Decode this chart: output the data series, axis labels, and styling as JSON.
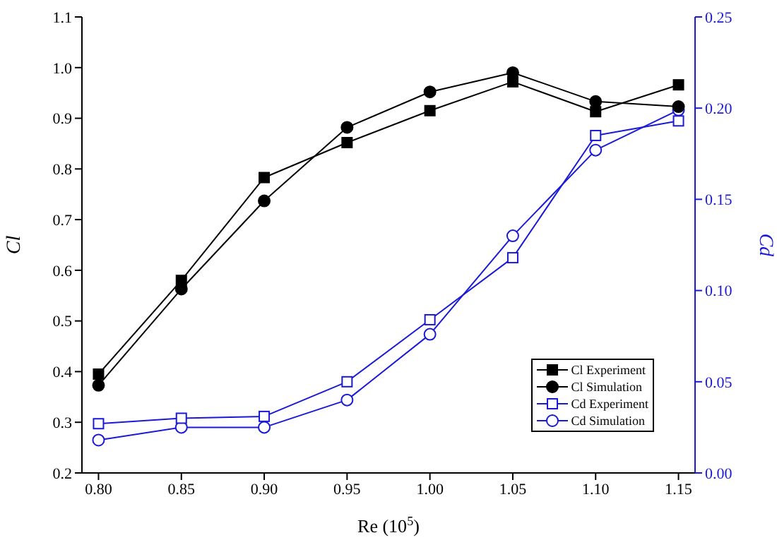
{
  "chart_data": {
    "type": "line",
    "xlabel": "Re (10$^{5}$)",
    "ylabel": "Cl",
    "y2label": "Cd",
    "x": [
      0.8,
      0.85,
      0.9,
      0.95,
      1.0,
      1.05,
      1.1,
      1.15
    ],
    "series": [
      {
        "name": "Cl Experiment",
        "color": "#000000",
        "marker": "square",
        "values": [
          0.395,
          0.58,
          0.783,
          0.852,
          0.915,
          0.972,
          0.913,
          0.966
        ]
      },
      {
        "name": "Cl Simulation",
        "color": "#000000",
        "marker": "circle",
        "values": [
          0.373,
          0.563,
          0.737,
          0.882,
          0.952,
          0.99,
          0.933,
          0.923
        ]
      },
      {
        "name": "Cd Experiment",
        "color": "#1a1ad6",
        "marker": "square",
        "axis": "y2",
        "values": [
          0.027,
          0.03,
          0.031,
          0.05,
          0.084,
          0.118,
          0.185,
          0.193
        ]
      },
      {
        "name": "Cd Simulation",
        "color": "#1a1ad6",
        "marker": "circle",
        "axis": "y2",
        "values": [
          0.018,
          0.025,
          0.025,
          0.04,
          0.076,
          0.13,
          0.177,
          0.199
        ]
      }
    ],
    "xlim": [
      0.79,
      1.16
    ],
    "xticks": [
      {
        "value": 0.8,
        "label": "0.80"
      },
      {
        "value": 0.85,
        "label": "0.85"
      },
      {
        "value": 0.9,
        "label": "0.90"
      },
      {
        "value": 0.95,
        "label": "0.95"
      },
      {
        "value": 1.0,
        "label": "1.00"
      },
      {
        "value": 1.05,
        "label": "1.05"
      },
      {
        "value": 1.1,
        "label": "1.10"
      },
      {
        "value": 1.15,
        "label": "1.15"
      }
    ],
    "ylim": [
      0.2,
      1.1
    ],
    "yticks": [
      0.2,
      0.3,
      0.4,
      0.5,
      0.6,
      0.7,
      0.8,
      0.9,
      {
        "value": 1.0,
        "label": "1.0"
      },
      1.1
    ],
    "y2lim": [
      0,
      0.25
    ],
    "y2ticks": [
      {
        "value": 0,
        "label": "0.00"
      },
      {
        "value": 0.05,
        "label": "0.05"
      },
      {
        "value": 0.1,
        "label": "0.10"
      },
      {
        "value": 0.15,
        "label": "0.15"
      },
      {
        "value": 0.2,
        "label": "0.20"
      },
      {
        "value": 0.25,
        "label": "0.25"
      }
    ],
    "grid": false,
    "legend": "bottom right",
    "line_style": "solid"
  }
}
